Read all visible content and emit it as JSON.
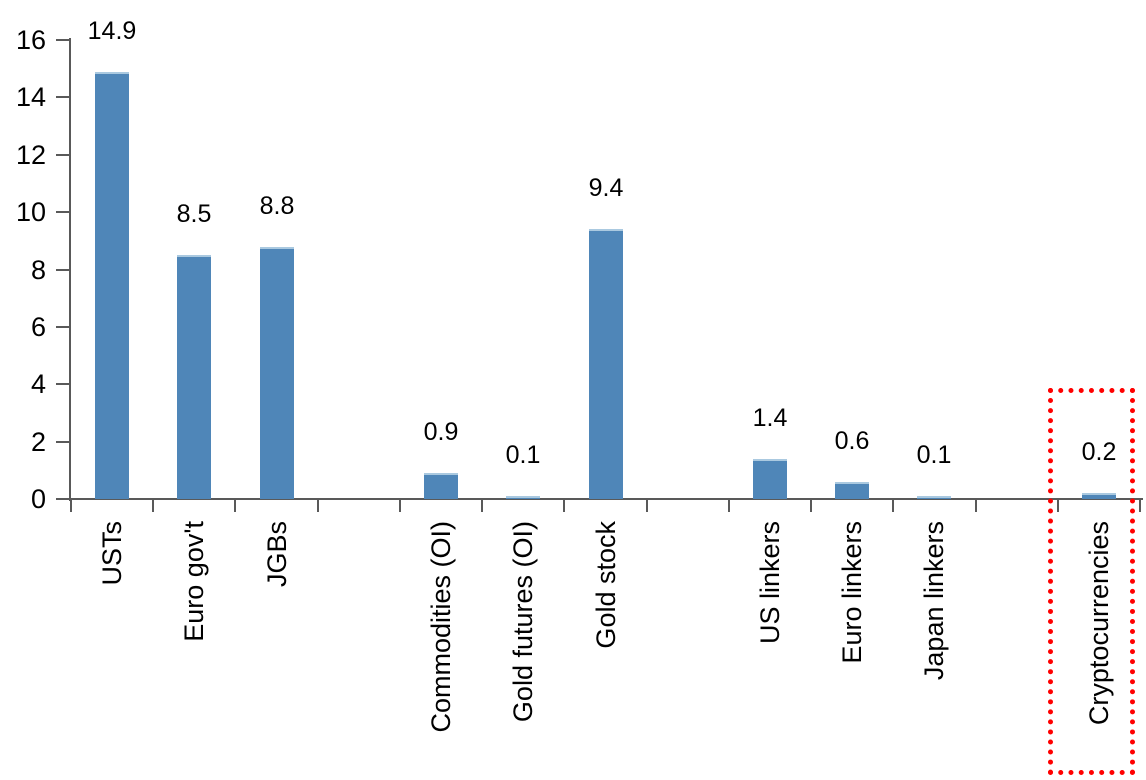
{
  "chart_data": {
    "type": "bar",
    "title": "",
    "xlabel": "",
    "ylabel": "",
    "categories": [
      "USTs",
      "Euro gov't",
      "JGBs",
      "Commodities (OI)",
      "Gold futures (OI)",
      "Gold stock",
      "US linkers",
      "Euro linkers",
      "Japan linkers",
      "Cryptocurrencies"
    ],
    "values": [
      14.9,
      8.5,
      8.8,
      0.9,
      0.1,
      9.4,
      1.4,
      0.6,
      0.1,
      0.2
    ],
    "value_labels": [
      "14.9",
      "8.5",
      "8.8",
      "0.9",
      "0.1",
      "9.4",
      "1.4",
      "0.6",
      "0.1",
      "0.2"
    ],
    "slots": [
      0,
      1,
      2,
      4,
      5,
      6,
      8,
      9,
      10,
      12
    ],
    "total_slots": 13,
    "ylim": [
      0,
      16
    ],
    "yticks": [
      0,
      2,
      4,
      6,
      8,
      10,
      12,
      14,
      16
    ],
    "ytick_labels": [
      "0",
      "2",
      "4",
      "6",
      "8",
      "10",
      "12",
      "14",
      "16"
    ],
    "grid": false,
    "legend": false,
    "bar_color": "#4f86b8",
    "bar_top_highlight_color": "#aac9e0",
    "axis_color": "#595959",
    "text_color": "#000000",
    "highlight": {
      "category": "Cryptocurrencies",
      "slot": 12,
      "style": "red-dotted-box",
      "color": "#ff0000"
    }
  }
}
